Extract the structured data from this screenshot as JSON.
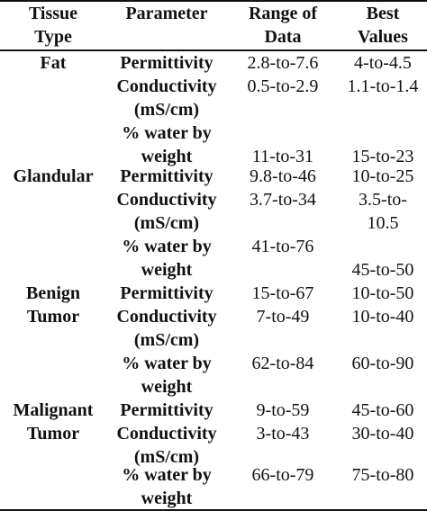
{
  "header": {
    "tissue_line1": "Tissue",
    "tissue_line2": "Type",
    "parameter": "Parameter",
    "range_line1": "Range of",
    "range_line2": "Data",
    "best_line1": "Best",
    "best_line2": "Values"
  },
  "groups": [
    {
      "tissue": [
        "Fat"
      ],
      "rows": [
        {
          "param": [
            "Permittivity"
          ],
          "range": "2.8-to-7.6",
          "best": "4-to-4.5"
        },
        {
          "param": [
            "Conductivity",
            "(mS/cm)"
          ],
          "range": "0.5-to-2.9",
          "best": "1.1-to-1.4"
        },
        {
          "param": [
            "% water by",
            "weight"
          ],
          "range": "11-to-31",
          "best": "15-to-23"
        }
      ]
    },
    {
      "tissue": [
        "Glandular"
      ],
      "rows": [
        {
          "param": [
            "Permittivity"
          ],
          "range": "9.8-to-46",
          "best": "10-to-25"
        },
        {
          "param": [
            "Conductivity",
            "(mS/cm)"
          ],
          "range": "3.7-to-34",
          "best": [
            "3.5-to-",
            "10.5"
          ]
        },
        {
          "param": [
            "% water by",
            "weight"
          ],
          "range": "41-to-76",
          "best": "45-to-50"
        }
      ]
    },
    {
      "tissue": [
        "Benign",
        "Tumor"
      ],
      "rows": [
        {
          "param": [
            "Permittivity"
          ],
          "range": "15-to-67",
          "best": "10-to-50"
        },
        {
          "param": [
            "Conductivity",
            "(mS/cm)"
          ],
          "range": "7-to-49",
          "best": "10-to-40"
        },
        {
          "param": [
            "% water by",
            "weight"
          ],
          "range": "62-to-84",
          "best": "60-to-90"
        }
      ]
    },
    {
      "tissue": [
        "Malignant",
        "Tumor"
      ],
      "rows": [
        {
          "param": [
            "Permittivity"
          ],
          "range": "9-to-59",
          "best": "45-to-60"
        },
        {
          "param": [
            "Conductivity",
            "(mS/cm)"
          ],
          "range": "3-to-43",
          "best": "30-to-40"
        },
        {
          "param": [
            "% water by",
            "weight"
          ],
          "range": "66-to-79",
          "best": "75-to-80"
        }
      ]
    }
  ]
}
